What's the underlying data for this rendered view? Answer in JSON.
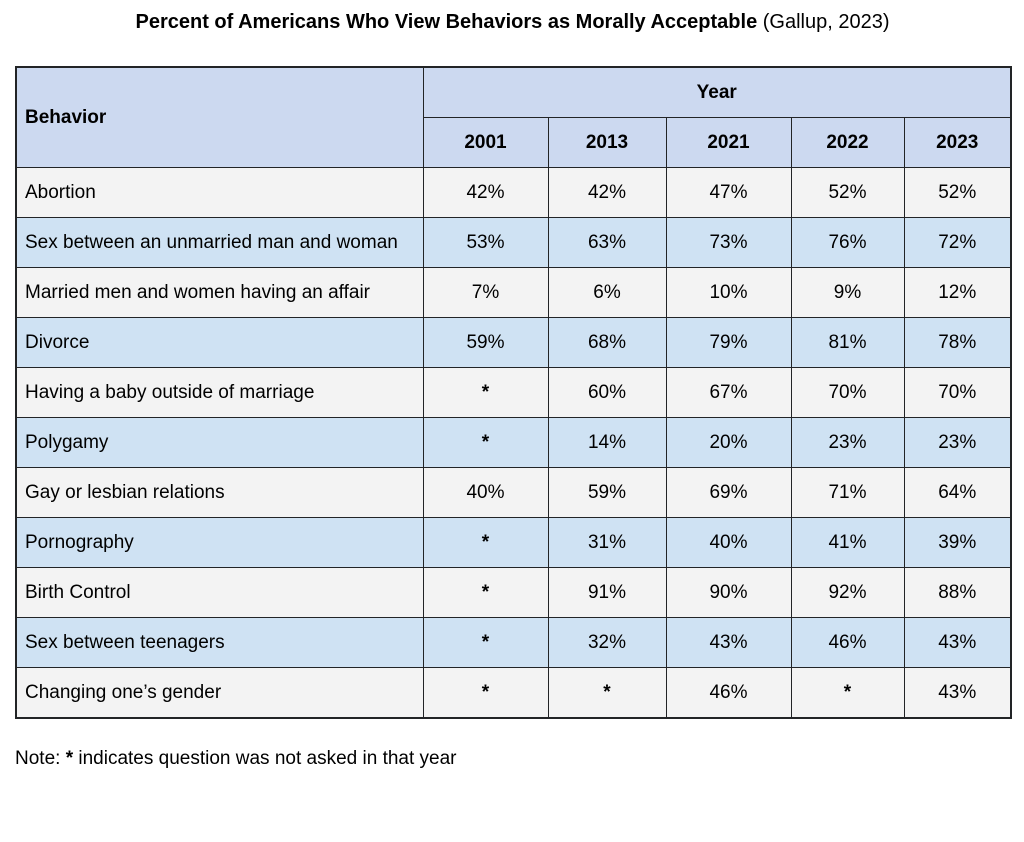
{
  "title": {
    "main": "Percent of Americans Who View Behaviors as Morally Acceptable",
    "source": " (Gallup, 2023)"
  },
  "chart_data": {
    "type": "table",
    "title": "Percent of Americans Who View Behaviors as Morally Acceptable (Gallup, 2023)",
    "behavior_header": "Behavior",
    "year_group_header": "Year",
    "columns": [
      "2001",
      "2013",
      "2021",
      "2022",
      "2023"
    ],
    "not_asked_symbol": "*",
    "rows": [
      {
        "behavior": "Abortion",
        "values": [
          "42%",
          "42%",
          "47%",
          "52%",
          "52%"
        ]
      },
      {
        "behavior": "Sex between an unmarried man and woman",
        "values": [
          "53%",
          "63%",
          "73%",
          "76%",
          "72%"
        ]
      },
      {
        "behavior": "Married men and women having an affair",
        "values": [
          "7%",
          "6%",
          "10%",
          "9%",
          "12%"
        ]
      },
      {
        "behavior": "Divorce",
        "values": [
          "59%",
          "68%",
          "79%",
          "81%",
          "78%"
        ]
      },
      {
        "behavior": "Having a baby outside of marriage",
        "values": [
          "*",
          "60%",
          "67%",
          "70%",
          "70%"
        ]
      },
      {
        "behavior": "Polygamy",
        "values": [
          "*",
          "14%",
          "20%",
          "23%",
          "23%"
        ]
      },
      {
        "behavior": "Gay or lesbian relations",
        "values": [
          "40%",
          "59%",
          "69%",
          "71%",
          "64%"
        ]
      },
      {
        "behavior": "Pornography",
        "values": [
          "*",
          "31%",
          "40%",
          "41%",
          "39%"
        ]
      },
      {
        "behavior": "Birth Control",
        "values": [
          "*",
          "91%",
          "90%",
          "92%",
          "88%"
        ]
      },
      {
        "behavior": "Sex between teenagers",
        "values": [
          "*",
          "32%",
          "43%",
          "46%",
          "43%"
        ]
      },
      {
        "behavior": "Changing one’s gender",
        "values": [
          "*",
          "*",
          "46%",
          "*",
          "43%"
        ]
      }
    ],
    "layout": {
      "striped": true,
      "stripe_colors_hex": [
        "#f3f3f3",
        "#cfe2f3"
      ],
      "header_bg_hex": "#ccd9f0",
      "border_hex": "#222426",
      "grid": true,
      "legend": "none"
    }
  },
  "note": {
    "prefix": "Note: ",
    "symbol": "*",
    "rest": " indicates question was not asked in that year"
  }
}
